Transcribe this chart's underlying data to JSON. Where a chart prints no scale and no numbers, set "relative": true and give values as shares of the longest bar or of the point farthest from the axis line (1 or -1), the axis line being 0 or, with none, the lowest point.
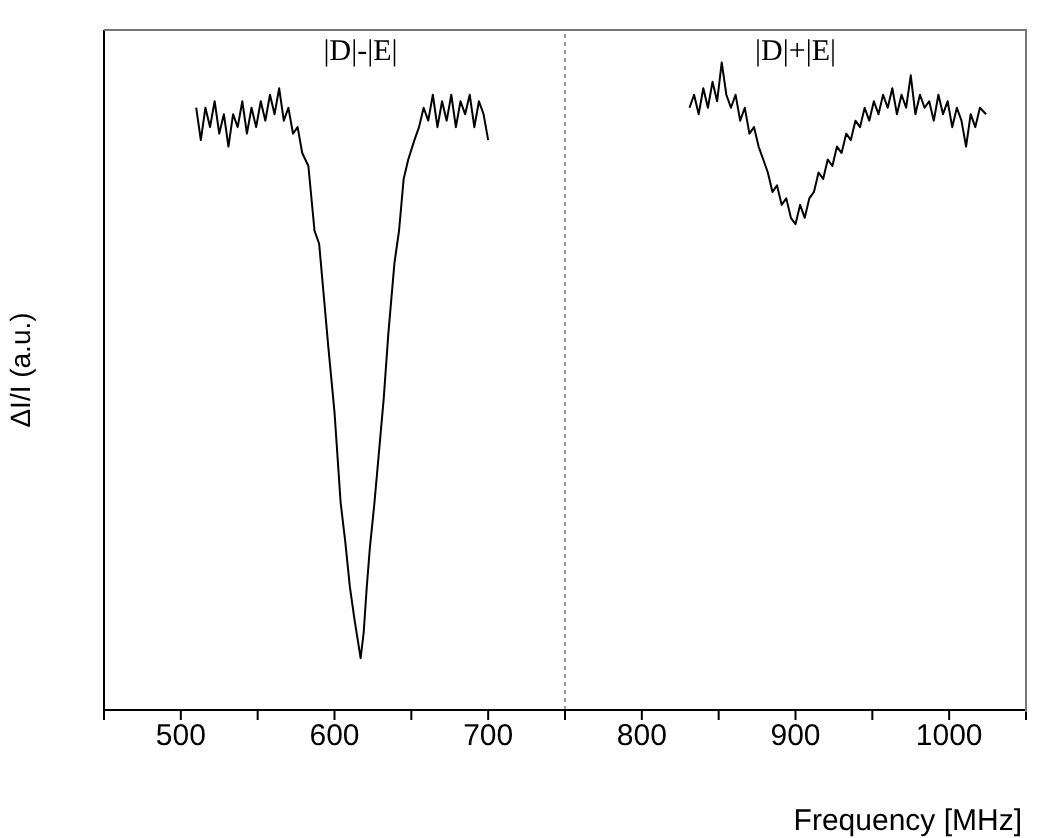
{
  "chart_data": {
    "type": "line",
    "xlabel": "Frequency [MHz]",
    "ylabel": "ΔI/I (a.u.)",
    "relative": true,
    "tick_labels": "x",
    "marker": "none",
    "line_style": "solid",
    "xlim": [
      450,
      1050
    ],
    "xticks": [
      {
        "value": 450,
        "label": null
      },
      500,
      {
        "value": 550,
        "label": null
      },
      600,
      {
        "value": 650,
        "label": null
      },
      700,
      {
        "value": 750,
        "label": null
      },
      800,
      {
        "value": 850,
        "label": null
      },
      900,
      {
        "value": 950,
        "label": null
      },
      1000,
      {
        "value": 1050,
        "label": null
      }
    ],
    "annotations": [
      "|D|-|E|",
      "|D|+|E|"
    ],
    "ref_lines": [
      {
        "axis": "x",
        "value": 750,
        "color": "#999999",
        "line_style": "dotted"
      }
    ],
    "series": [
      {
        "color": "#000000",
        "x": [
          510,
          513,
          516,
          519,
          522,
          525,
          528,
          531,
          534,
          537,
          540,
          543,
          546,
          549,
          552,
          555,
          558,
          561,
          564,
          567,
          570,
          573,
          576,
          579,
          583,
          587,
          590,
          593,
          596,
          600,
          604,
          607,
          610,
          613,
          617,
          619,
          621,
          623,
          626,
          629,
          632,
          635,
          639,
          642,
          645,
          648,
          652,
          655,
          658,
          661,
          664,
          667,
          670,
          673,
          676,
          679,
          682,
          685,
          688,
          691,
          694,
          697,
          700
        ],
        "values": [
          0.93,
          0.88,
          0.93,
          0.9,
          0.94,
          0.89,
          0.92,
          0.87,
          0.92,
          0.9,
          0.94,
          0.89,
          0.93,
          0.9,
          0.94,
          0.91,
          0.95,
          0.92,
          0.96,
          0.91,
          0.93,
          0.89,
          0.9,
          0.86,
          0.84,
          0.74,
          0.72,
          0.64,
          0.56,
          0.46,
          0.32,
          0.26,
          0.19,
          0.14,
          0.08,
          0.12,
          0.19,
          0.25,
          0.32,
          0.4,
          0.48,
          0.58,
          0.69,
          0.74,
          0.82,
          0.85,
          0.88,
          0.9,
          0.93,
          0.91,
          0.95,
          0.9,
          0.94,
          0.91,
          0.95,
          0.9,
          0.94,
          0.92,
          0.95,
          0.9,
          0.94,
          0.92,
          0.88
        ]
      },
      {
        "color": "#000000",
        "x": [
          831,
          834,
          837,
          840,
          843,
          846,
          849,
          852,
          855,
          858,
          861,
          864,
          867,
          870,
          873,
          876,
          879,
          882,
          885,
          888,
          891,
          894,
          897,
          900,
          903,
          906,
          909,
          912,
          915,
          918,
          921,
          924,
          927,
          930,
          933,
          936,
          939,
          942,
          945,
          948,
          951,
          954,
          957,
          960,
          963,
          966,
          969,
          972,
          975,
          978,
          981,
          984,
          987,
          990,
          993,
          996,
          999,
          1002,
          1005,
          1008,
          1011,
          1014,
          1017,
          1020,
          1024
        ],
        "values": [
          0.93,
          0.95,
          0.92,
          0.96,
          0.93,
          0.97,
          0.94,
          1.0,
          0.95,
          0.93,
          0.95,
          0.91,
          0.93,
          0.89,
          0.9,
          0.87,
          0.85,
          0.83,
          0.8,
          0.81,
          0.78,
          0.79,
          0.76,
          0.75,
          0.78,
          0.76,
          0.79,
          0.8,
          0.83,
          0.82,
          0.85,
          0.84,
          0.87,
          0.86,
          0.89,
          0.88,
          0.91,
          0.9,
          0.93,
          0.91,
          0.94,
          0.92,
          0.95,
          0.93,
          0.96,
          0.92,
          0.95,
          0.93,
          0.98,
          0.92,
          0.95,
          0.93,
          0.94,
          0.91,
          0.95,
          0.92,
          0.94,
          0.9,
          0.93,
          0.91,
          0.87,
          0.92,
          0.9,
          0.93,
          0.92
        ]
      }
    ]
  }
}
